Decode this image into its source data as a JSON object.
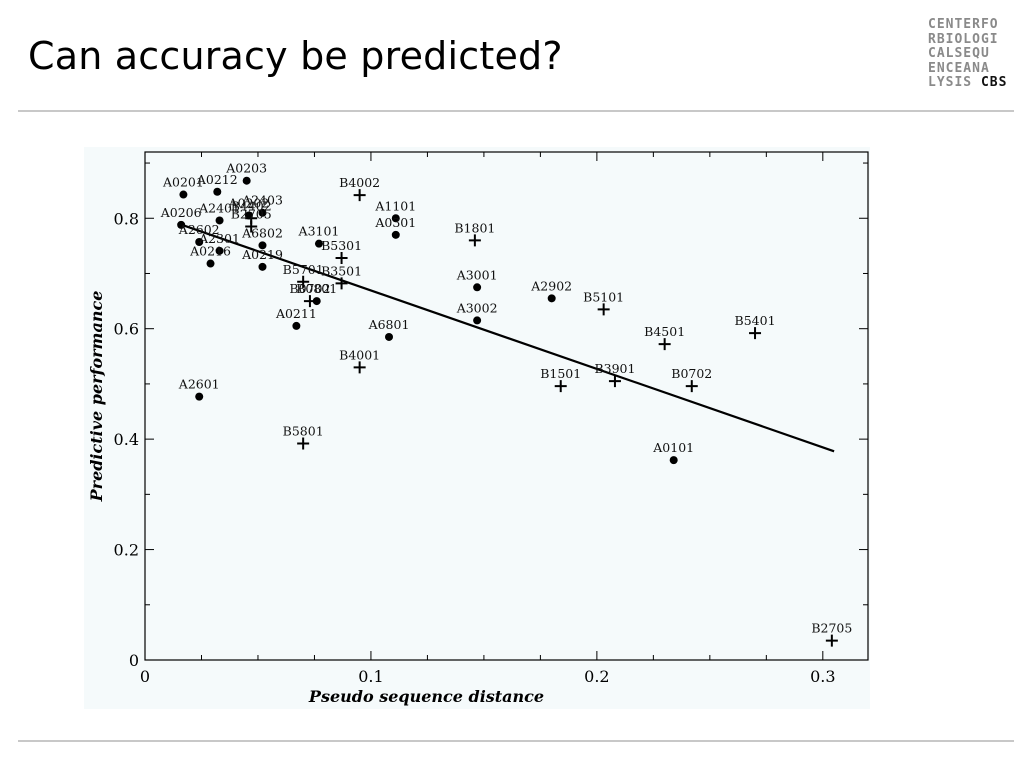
{
  "slide": {
    "title": "Can accuracy be predicted?"
  },
  "logo": {
    "lines": [
      "CENTERFO",
      "RBIOLOGI",
      "CALSEQU",
      "ENCEANA",
      "LYSIS"
    ],
    "accent": "CBS"
  },
  "colors": {
    "panel_background": "#f5fafb",
    "marks": "#000000",
    "rule": "#c8c8c8"
  },
  "chart_data": {
    "type": "scatter",
    "title": "",
    "xlabel": "Pseudo sequence distance",
    "ylabel": "Predictive performance",
    "xlim": [
      0,
      0.32
    ],
    "ylim": [
      0,
      0.92
    ],
    "xticks": [
      0,
      0.1,
      0.2,
      0.3
    ],
    "xtick_labels": [
      "0",
      "0.1",
      "0.2",
      "0.3"
    ],
    "yticks": [
      0,
      0.2,
      0.4,
      0.6,
      0.8
    ],
    "ytick_labels": [
      "0",
      "0.2",
      "0.4",
      "0.6",
      "0.8"
    ],
    "grid": false,
    "legend": "none",
    "series": [
      {
        "marker": "circle",
        "points": [
          {
            "label": "A0201",
            "x": 0.017,
            "y": 0.843
          },
          {
            "label": "A0212",
            "x": 0.032,
            "y": 0.848
          },
          {
            "label": "A0203",
            "x": 0.045,
            "y": 0.868
          },
          {
            "label": "A0202",
            "x": 0.046,
            "y": 0.805
          },
          {
            "label": "A2403",
            "x": 0.052,
            "y": 0.81
          },
          {
            "label": "A2401",
            "x": 0.033,
            "y": 0.796
          },
          {
            "label": "A0206",
            "x": 0.016,
            "y": 0.788
          },
          {
            "label": "A2602",
            "x": 0.024,
            "y": 0.757
          },
          {
            "label": "A2301",
            "x": 0.033,
            "y": 0.741
          },
          {
            "label": "A6802",
            "x": 0.052,
            "y": 0.751
          },
          {
            "label": "A0216",
            "x": 0.029,
            "y": 0.718
          },
          {
            "label": "A0219",
            "x": 0.052,
            "y": 0.712
          },
          {
            "label": "A3101",
            "x": 0.077,
            "y": 0.754
          },
          {
            "label": "B0801",
            "x": 0.076,
            "y": 0.65
          },
          {
            "label": "A0211",
            "x": 0.067,
            "y": 0.605
          },
          {
            "label": "A1101",
            "x": 0.111,
            "y": 0.8
          },
          {
            "label": "A0301",
            "x": 0.111,
            "y": 0.77
          },
          {
            "label": "A6801",
            "x": 0.108,
            "y": 0.585
          },
          {
            "label": "A3001",
            "x": 0.147,
            "y": 0.675
          },
          {
            "label": "A3002",
            "x": 0.147,
            "y": 0.615
          },
          {
            "label": "A2902",
            "x": 0.18,
            "y": 0.655
          },
          {
            "label": "A2601",
            "x": 0.024,
            "y": 0.477
          },
          {
            "label": "A0101",
            "x": 0.234,
            "y": 0.362
          }
        ]
      },
      {
        "marker": "plus",
        "points": [
          {
            "label": "B4402",
            "x": 0.047,
            "y": 0.8
          },
          {
            "label": "B2705",
            "x": 0.047,
            "y": 0.785
          },
          {
            "label": "B4002",
            "x": 0.095,
            "y": 0.842
          },
          {
            "label": "B5301",
            "x": 0.087,
            "y": 0.728
          },
          {
            "label": "B1801",
            "x": 0.146,
            "y": 0.76
          },
          {
            "label": "B5701",
            "x": 0.07,
            "y": 0.685
          },
          {
            "label": "B3501",
            "x": 0.087,
            "y": 0.682
          },
          {
            "label": "B0702",
            "x": 0.073,
            "y": 0.65
          },
          {
            "label": "B4001",
            "x": 0.095,
            "y": 0.53
          },
          {
            "label": "B5101",
            "x": 0.203,
            "y": 0.635
          },
          {
            "label": "B4501",
            "x": 0.23,
            "y": 0.572
          },
          {
            "label": "B5401",
            "x": 0.27,
            "y": 0.592
          },
          {
            "label": "B1501",
            "x": 0.184,
            "y": 0.496
          },
          {
            "label": "B3901",
            "x": 0.208,
            "y": 0.505
          },
          {
            "label": "B0702",
            "x": 0.242,
            "y": 0.496
          },
          {
            "label": "B5801",
            "x": 0.07,
            "y": 0.392
          },
          {
            "label": "B2705",
            "x": 0.304,
            "y": 0.035
          }
        ]
      }
    ],
    "fit_line": {
      "x": [
        0.015,
        0.305
      ],
      "y": [
        0.79,
        0.378
      ]
    }
  }
}
